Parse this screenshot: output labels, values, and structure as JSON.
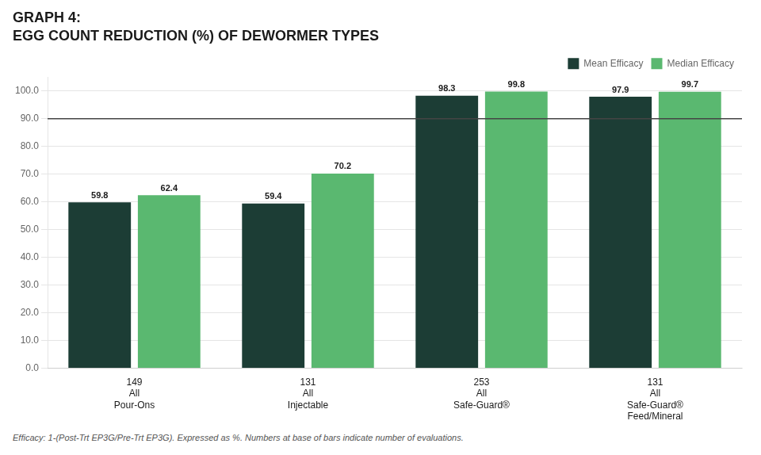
{
  "chart_data": {
    "type": "bar",
    "title": "GRAPH 4:",
    "subtitle": "EGG COUNT REDUCTION (%) OF DEWORMER TYPES",
    "categories": [
      [
        "All",
        "Pour-Ons"
      ],
      [
        "All",
        "Injectable"
      ],
      [
        "All",
        "Safe-Guard®"
      ],
      [
        "All",
        "Safe-Guard®",
        "Feed/Mineral"
      ]
    ],
    "counts": [
      149,
      131,
      253,
      131
    ],
    "series": [
      {
        "name": "Mean Efficacy",
        "color": "#1c3d35",
        "values": [
          59.8,
          59.4,
          98.3,
          97.9
        ]
      },
      {
        "name": "Median Efficacy",
        "color": "#5ab870",
        "values": [
          62.4,
          70.2,
          99.8,
          99.7
        ]
      }
    ],
    "reference_line": 90,
    "ylim": [
      0,
      105
    ],
    "yticks": [
      {
        "value": 0,
        "label": "0.0"
      },
      {
        "value": 10,
        "label": "10.0"
      },
      {
        "value": 20,
        "label": "20.0"
      },
      {
        "value": 30,
        "label": "30.0"
      },
      {
        "value": 40,
        "label": "40.0"
      },
      {
        "value": 50,
        "label": "50.0"
      },
      {
        "value": 60,
        "label": "60.0"
      },
      {
        "value": 70,
        "label": "70.0"
      },
      {
        "value": 80,
        "label": "80.0"
      },
      {
        "value": 90,
        "label": "90.0"
      },
      {
        "value": 100,
        "label": "100.0"
      }
    ],
    "grid": true,
    "legend": "upper right",
    "data_labels": true,
    "footnote": "Efficacy: 1-(Post-Trt EP3G/Pre-Trt EP3G). Expressed as %. Numbers at base of bars indicate number of evaluations."
  }
}
